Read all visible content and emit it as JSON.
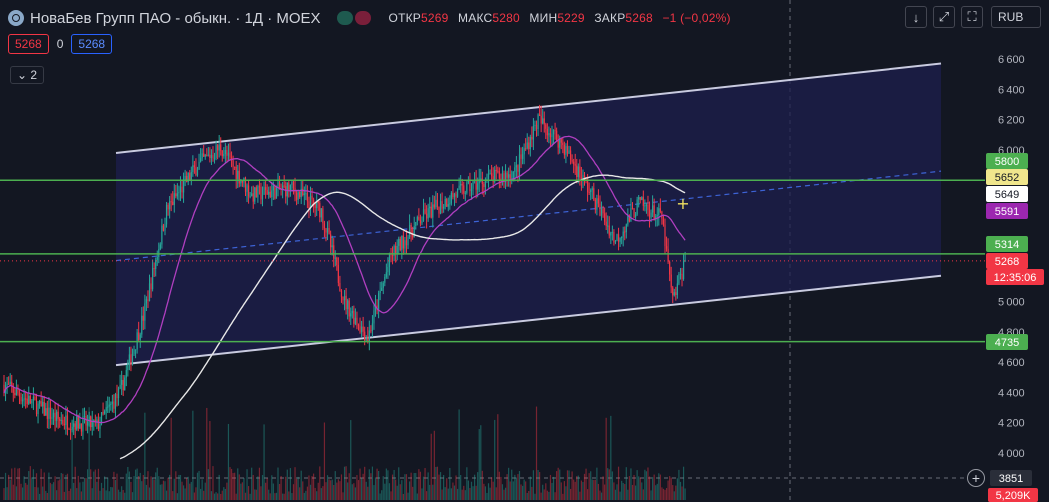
{
  "header": {
    "title": "НоваБев Групп ПАО - обыкн. · 1Д · MOEX",
    "ohlc": [
      {
        "label": "ОТКР",
        "value": "5269"
      },
      {
        "label": "МАКС",
        "value": "5280"
      },
      {
        "label": "МИН",
        "value": "5229"
      },
      {
        "label": "ЗАКР",
        "value": "5268"
      }
    ],
    "change": "−1 (−0,02%)",
    "sell_price": "5268",
    "spread": "0",
    "buy_price": "5268",
    "indicators_count": "2",
    "currency": "RUB",
    "collapse_icon": "chevron-down-icon",
    "arrow_icon": "arrow-down-icon",
    "fullscreen_icon": "expand-icon",
    "screenshot_icon": "camera-icon",
    "close_icon": "close-icon"
  },
  "colors": {
    "background": "#131722",
    "up": "#26a69a",
    "down": "#f23645",
    "channel": "#c9cbe0",
    "channel_fill": "#1d1f4d",
    "ma_fast": "#b03fc0",
    "ma_slow": "#e8e8e8",
    "level": "#4caf50",
    "mid": "#3d63d6"
  },
  "chart_data": {
    "type": "candlestick",
    "ylim": [
      3850,
      6700
    ],
    "y_ticks": [
      4000,
      4200,
      4400,
      4600,
      4800,
      5000,
      5200,
      5400,
      5600,
      5800,
      6000,
      6200,
      6400,
      6600
    ],
    "last_price": 5268,
    "countdown": "12:35:06",
    "price_labels": [
      {
        "value": "5800",
        "color": "#4caf50"
      },
      {
        "value": "5652",
        "color": "#f0e68c"
      },
      {
        "value": "5649",
        "color": "#ffffff"
      },
      {
        "value": "5591",
        "color": "#9c27b0"
      },
      {
        "value": "5314",
        "color": "#4caf50"
      },
      {
        "value": "5268",
        "color": "#f23645"
      },
      {
        "value": "4735",
        "color": "#4caf50"
      },
      {
        "value": "3851",
        "color": "#2a2e39"
      },
      {
        "value": "5,209K",
        "color": "#f23645"
      }
    ],
    "horizontal_levels": [
      5800,
      5314,
      4735
    ],
    "channel": {
      "upper_start": 5980,
      "upper_end": 6570,
      "lower_start": 4580,
      "lower_end": 5170,
      "mid_start": 5270,
      "mid_end": 5860
    },
    "series_key_points": [
      {
        "t": 0,
        "v": 4450
      },
      {
        "t": 35,
        "v": 4220
      },
      {
        "t": 60,
        "v": 4180
      },
      {
        "t": 75,
        "v": 4400
      },
      {
        "t": 90,
        "v": 4900
      },
      {
        "t": 105,
        "v": 5600
      },
      {
        "t": 125,
        "v": 5900
      },
      {
        "t": 140,
        "v": 6020
      },
      {
        "t": 160,
        "v": 5700
      },
      {
        "t": 185,
        "v": 5750
      },
      {
        "t": 205,
        "v": 5600
      },
      {
        "t": 220,
        "v": 5000
      },
      {
        "t": 235,
        "v": 4760
      },
      {
        "t": 250,
        "v": 5300
      },
      {
        "t": 270,
        "v": 5550
      },
      {
        "t": 290,
        "v": 5700
      },
      {
        "t": 310,
        "v": 5800
      },
      {
        "t": 330,
        "v": 5850
      },
      {
        "t": 345,
        "v": 6200
      },
      {
        "t": 360,
        "v": 6050
      },
      {
        "t": 380,
        "v": 5700
      },
      {
        "t": 395,
        "v": 5400
      },
      {
        "t": 410,
        "v": 5650
      },
      {
        "t": 425,
        "v": 5550
      },
      {
        "t": 432,
        "v": 5000
      },
      {
        "t": 440,
        "v": 5268
      }
    ]
  }
}
